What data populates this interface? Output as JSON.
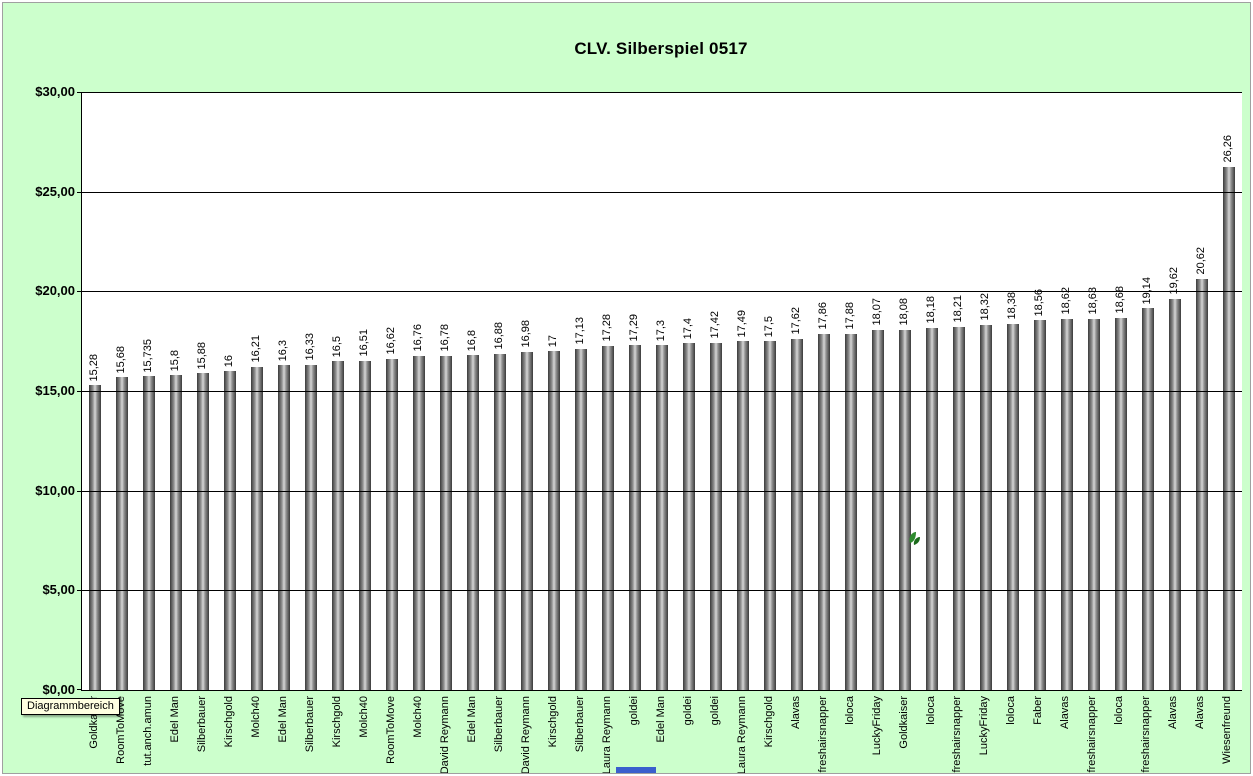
{
  "window": {
    "tooltip": "Diagrammbereich"
  },
  "chart_data": {
    "type": "bar",
    "title": "CLV. Silberspiel 0517",
    "xlabel": "",
    "ylabel": "",
    "ylim": [
      0,
      30
    ],
    "grid": "horizontal",
    "legend": "none",
    "yticks": [
      {
        "label": "$30,00",
        "value": 30
      },
      {
        "label": "$25,00",
        "value": 25
      },
      {
        "label": "$20,00",
        "value": 20
      },
      {
        "label": "$15,00",
        "value": 15
      },
      {
        "label": "$10,00",
        "value": 10
      },
      {
        "label": "$5,00",
        "value": 5
      },
      {
        "label": "$0,00",
        "value": 0
      }
    ],
    "categories": [
      "Goldkaiser",
      "RoomToMove",
      "tut.anch.amun",
      "Edel Man",
      "Silberbauer",
      "Kirschgold",
      "Molch40",
      "Edel Man",
      "Silberbauer",
      "Kirschgold",
      "Molch40",
      "RoomToMove",
      "Molch40",
      "David Reymann",
      "Edel Man",
      "Silberbauer",
      "David Reymann",
      "Kirschgold",
      "Silberbauer",
      "Laura Reymann",
      "goldei",
      "Edel Man",
      "goldei",
      "goldei",
      "Laura Reymann",
      "Kirschgold",
      "Alavas",
      "freshairsnapper",
      "loloca",
      "LuckyFriday",
      "Goldkaiser",
      "loloca",
      "freshairsnapper",
      "LuckyFriday",
      "loloca",
      "Faber",
      "Alavas",
      "freshairsnapper",
      "loloca",
      "freshairsnapper",
      "Alavas",
      "Alavas",
      "Wiesenfreund"
    ],
    "values": [
      15.28,
      15.68,
      15.735,
      15.8,
      15.88,
      16,
      16.21,
      16.3,
      16.33,
      16.5,
      16.51,
      16.62,
      16.76,
      16.78,
      16.8,
      16.88,
      16.98,
      17,
      17.13,
      17.28,
      17.29,
      17.3,
      17.4,
      17.42,
      17.49,
      17.5,
      17.62,
      17.86,
      17.88,
      18.07,
      18.08,
      18.18,
      18.21,
      18.32,
      18.38,
      18.56,
      18.62,
      18.63,
      18.68,
      19.14,
      19.62,
      20.62,
      26.26
    ],
    "value_labels": [
      "15,28",
      "15,68",
      "15,735",
      "15,8",
      "15,88",
      "16",
      "16,21",
      "16,3",
      "16,33",
      "16,5",
      "16,51",
      "16,62",
      "16,76",
      "16,78",
      "16,8",
      "16,88",
      "16,98",
      "17",
      "17,13",
      "17,28",
      "17,29",
      "17,3",
      "17,4",
      "17,42",
      "17,49",
      "17,5",
      "17,62",
      "17,86",
      "17,88",
      "18,07",
      "18,08",
      "18,18",
      "18,21",
      "18,32",
      "18,38",
      "18,56",
      "18,62",
      "18,63",
      "18,68",
      "19,14",
      "19,62",
      "20,62",
      "26,26"
    ],
    "colors": {
      "chart_background": "#ccffcc",
      "plot_background": "#ffffff",
      "gridline": "#000000",
      "bar_dark": "#3a3a3a",
      "bar_light": "#d6d6d6",
      "tooltip_background": "#ffffe1",
      "sprout_green": "#2e8b2e"
    }
  }
}
